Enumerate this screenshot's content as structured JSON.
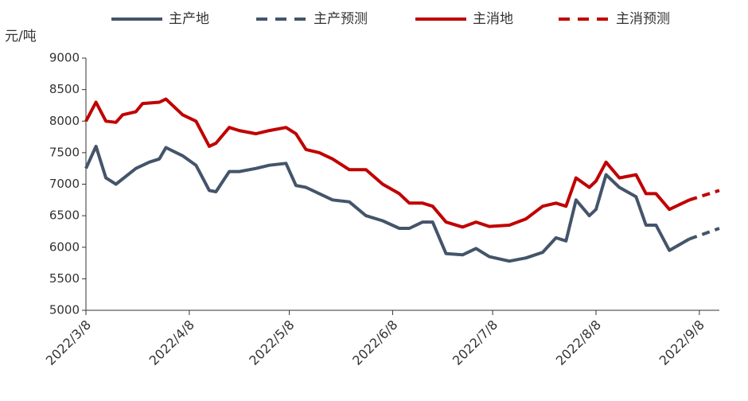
{
  "chart_data": {
    "type": "line",
    "y_label": "元/吨",
    "xlim": [
      "2022/3/8",
      "2022/9/14"
    ],
    "xticks": [
      "2022/3/8",
      "2022/4/8",
      "2022/5/8",
      "2022/6/8",
      "2022/7/8",
      "2022/8/8",
      "2022/9/8"
    ],
    "ylim": [
      5000,
      9000
    ],
    "yticks": [
      5000,
      5500,
      6000,
      6500,
      7000,
      7500,
      8000,
      8500,
      9000
    ],
    "series": [
      {
        "name": "主产地",
        "color": "#44546a",
        "dash": false,
        "x": [
          "2022/3/8",
          "2022/3/11",
          "2022/3/14",
          "2022/3/17",
          "2022/3/23",
          "2022/3/27",
          "2022/3/30",
          "2022/4/1",
          "2022/4/6",
          "2022/4/10",
          "2022/4/14",
          "2022/4/16",
          "2022/4/20",
          "2022/4/23",
          "2022/4/28",
          "2022/5/2",
          "2022/5/7",
          "2022/5/10",
          "2022/5/13",
          "2022/5/17",
          "2022/5/21",
          "2022/5/26",
          "2022/5/31",
          "2022/6/5",
          "2022/6/10",
          "2022/6/13",
          "2022/6/17",
          "2022/6/20",
          "2022/6/24",
          "2022/6/29",
          "2022/7/3",
          "2022/7/7",
          "2022/7/13",
          "2022/7/18",
          "2022/7/23",
          "2022/7/27",
          "2022/7/30",
          "2022/8/2",
          "2022/8/6",
          "2022/8/8",
          "2022/8/11",
          "2022/8/15",
          "2022/8/20",
          "2022/8/23",
          "2022/8/26",
          "2022/8/30",
          "2022/9/5"
        ],
        "values": [
          7250,
          7600,
          7100,
          7000,
          7250,
          7350,
          7400,
          7580,
          7450,
          7300,
          6900,
          6880,
          7200,
          7200,
          7250,
          7300,
          7330,
          6980,
          6950,
          6850,
          6750,
          6720,
          6500,
          6420,
          6300,
          6300,
          6400,
          6400,
          5900,
          5880,
          5980,
          5850,
          5780,
          5830,
          5920,
          6150,
          6100,
          6750,
          6500,
          6600,
          7150,
          6950,
          6800,
          6350,
          6350,
          5950,
          6130
        ]
      },
      {
        "name": "主产预测",
        "color": "#44546a",
        "dash": true,
        "x": [
          "2022/9/5",
          "2022/9/14"
        ],
        "values": [
          6130,
          6300
        ]
      },
      {
        "name": "主消地",
        "color": "#c00000",
        "dash": false,
        "x": [
          "2022/3/8",
          "2022/3/11",
          "2022/3/14",
          "2022/3/17",
          "2022/3/19",
          "2022/3/23",
          "2022/3/25",
          "2022/3/30",
          "2022/4/1",
          "2022/4/6",
          "2022/4/10",
          "2022/4/14",
          "2022/4/16",
          "2022/4/20",
          "2022/4/23",
          "2022/4/28",
          "2022/5/2",
          "2022/5/7",
          "2022/5/10",
          "2022/5/13",
          "2022/5/17",
          "2022/5/21",
          "2022/5/26",
          "2022/5/31",
          "2022/6/5",
          "2022/6/10",
          "2022/6/13",
          "2022/6/17",
          "2022/6/20",
          "2022/6/24",
          "2022/6/29",
          "2022/7/3",
          "2022/7/7",
          "2022/7/13",
          "2022/7/18",
          "2022/7/23",
          "2022/7/27",
          "2022/7/30",
          "2022/8/2",
          "2022/8/6",
          "2022/8/8",
          "2022/8/11",
          "2022/8/15",
          "2022/8/20",
          "2022/8/23",
          "2022/8/26",
          "2022/8/30",
          "2022/9/5"
        ],
        "values": [
          8000,
          8300,
          8000,
          7980,
          8100,
          8150,
          8280,
          8300,
          8350,
          8100,
          8000,
          7600,
          7650,
          7900,
          7850,
          7800,
          7850,
          7900,
          7800,
          7550,
          7500,
          7400,
          7230,
          7230,
          7000,
          6850,
          6700,
          6700,
          6650,
          6400,
          6320,
          6400,
          6330,
          6350,
          6450,
          6650,
          6700,
          6650,
          7100,
          6950,
          7050,
          7350,
          7100,
          7150,
          6850,
          6850,
          6600,
          6750
        ]
      },
      {
        "name": "主消预测",
        "color": "#c00000",
        "dash": true,
        "x": [
          "2022/9/5",
          "2022/9/14"
        ],
        "values": [
          6750,
          6900
        ]
      }
    ]
  }
}
